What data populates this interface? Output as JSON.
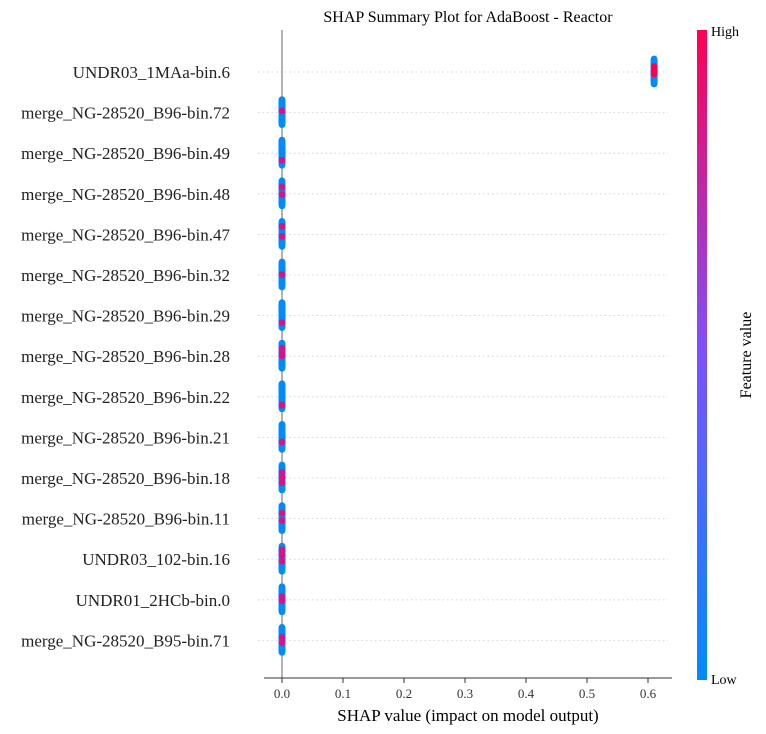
{
  "chart_data": {
    "type": "scatter",
    "subtype": "shap-beeswarm",
    "title": "SHAP Summary Plot for AdaBoost - Reactor",
    "xlabel": "SHAP value (impact on model output)",
    "xlim": [
      -0.03,
      0.64
    ],
    "xticks": [
      "0.0",
      "0.1",
      "0.2",
      "0.3",
      "0.4",
      "0.5",
      "0.6"
    ],
    "xtick_values": [
      0.0,
      0.1,
      0.2,
      0.3,
      0.4,
      0.5,
      0.6
    ],
    "features": [
      {
        "name": "UNDR03_1MAa-bin.6",
        "shap": 0.61,
        "high_value_marks": [
          0.3,
          0.45,
          0.6
        ]
      },
      {
        "name": "merge_NG-28520_B96-bin.72",
        "shap": 0.0,
        "high_value_marks": [
          0.45
        ]
      },
      {
        "name": "merge_NG-28520_B96-bin.49",
        "shap": 0.0,
        "high_value_marks": [
          0.8
        ]
      },
      {
        "name": "merge_NG-28520_B96-bin.48",
        "shap": 0.0,
        "high_value_marks": [
          0.25,
          0.55
        ]
      },
      {
        "name": "merge_NG-28520_B96-bin.47",
        "shap": 0.0,
        "high_value_marks": [
          0.2,
          0.6
        ]
      },
      {
        "name": "merge_NG-28520_B96-bin.32",
        "shap": 0.0,
        "high_value_marks": [
          0.5
        ]
      },
      {
        "name": "merge_NG-28520_B96-bin.29",
        "shap": 0.0,
        "high_value_marks": [
          0.8
        ]
      },
      {
        "name": "merge_NG-28520_B96-bin.28",
        "shap": 0.0,
        "high_value_marks": [
          0.2,
          0.35,
          0.5
        ]
      },
      {
        "name": "merge_NG-28520_B96-bin.22",
        "shap": 0.0,
        "high_value_marks": [
          0.85
        ]
      },
      {
        "name": "merge_NG-28520_B96-bin.21",
        "shap": 0.0,
        "high_value_marks": [
          0.7
        ]
      },
      {
        "name": "merge_NG-28520_B96-bin.18",
        "shap": 0.0,
        "high_value_marks": [
          0.3,
          0.5,
          0.7
        ]
      },
      {
        "name": "merge_NG-28520_B96-bin.11",
        "shap": 0.0,
        "high_value_marks": [
          0.3,
          0.6
        ]
      },
      {
        "name": "UNDR03_102-bin.16",
        "shap": 0.0,
        "high_value_marks": [
          0.15,
          0.35,
          0.6
        ]
      },
      {
        "name": "UNDR01_2HCb-bin.0",
        "shap": 0.0,
        "high_value_marks": [
          0.4,
          0.55
        ]
      },
      {
        "name": "merge_NG-28520_B95-bin.71",
        "shap": 0.0,
        "high_value_marks": [
          0.4,
          0.6
        ]
      }
    ],
    "colorbar": {
      "label": "Feature value",
      "high": "High",
      "low": "Low",
      "color_low": "#008bfb",
      "color_mid": "#7c52ff",
      "color_high": "#ff0051"
    },
    "grid": "dotted horizontal per feature row",
    "zero_line": true
  }
}
